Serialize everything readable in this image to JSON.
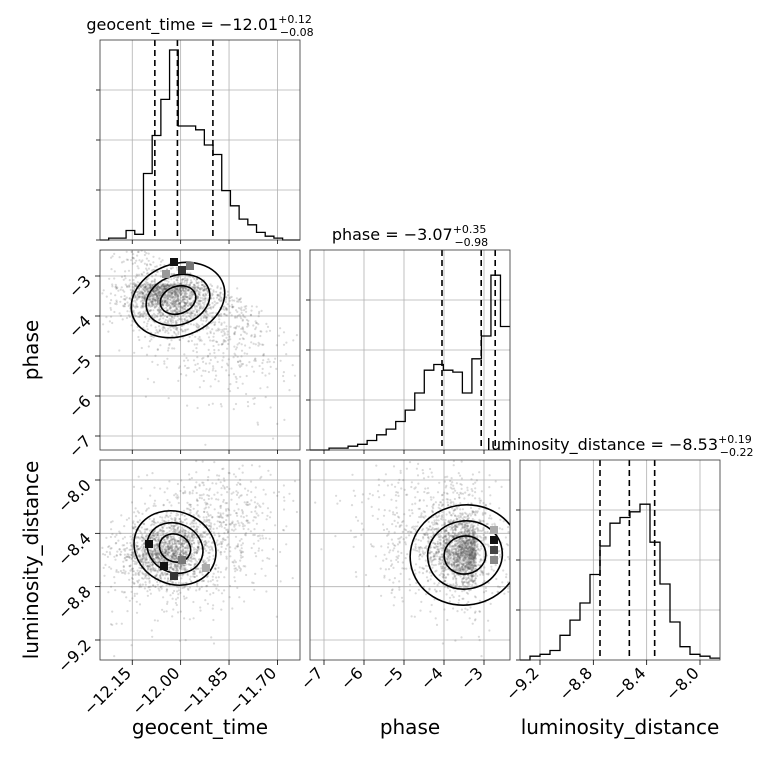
{
  "chart_data": {
    "type": "corner",
    "params": [
      {
        "name": "geocent_time",
        "label": "geocent_time",
        "median": -12.01,
        "plus": "+0.12",
        "minus": "−0.08",
        "title_main": "geocent_time = −12.01",
        "range": [
          -12.25,
          -11.63
        ],
        "ticks": [
          -12.15,
          -12.0,
          -11.85,
          -11.7
        ],
        "tick_labels": [
          "−12.15",
          "−12.00",
          "−11.85",
          "−11.70"
        ],
        "quantiles": [
          -12.08,
          -12.01,
          -11.9
        ],
        "hist": [
          0,
          0.01,
          0.01,
          0.05,
          0.03,
          0.35,
          0.55,
          0.74,
          1.0,
          0.6,
          0.6,
          0.58,
          0.5,
          0.45,
          0.26,
          0.18,
          0.11,
          0.08,
          0.04,
          0.02,
          0.01,
          0,
          0
        ]
      },
      {
        "name": "phase",
        "label": "phase",
        "median": -3.07,
        "plus": "+0.35",
        "minus": "−0.98",
        "title_main": "phase = −3.07",
        "range": [
          -7.35,
          -2.35
        ],
        "ticks": [
          -7,
          -6,
          -5,
          -4,
          -3
        ],
        "tick_labels": [
          "−7",
          "−6",
          "−5",
          "−4",
          "−3"
        ],
        "quantiles": [
          -4.05,
          -3.07,
          -2.72
        ],
        "hist": [
          0,
          0,
          0.01,
          0.01,
          0.02,
          0.03,
          0.05,
          0.08,
          0.11,
          0.15,
          0.21,
          0.3,
          0.42,
          0.45,
          0.42,
          0.41,
          0.3,
          0.48,
          0.6,
          0.92,
          0.65
        ]
      },
      {
        "name": "luminosity_distance",
        "label": "luminosity_distance",
        "median": -8.53,
        "plus": "+0.19",
        "minus": "−0.22",
        "title_main": "luminosity_distance = −8.53",
        "range": [
          -9.35,
          -7.85
        ],
        "ticks": [
          -9.2,
          -8.8,
          -8.4,
          -8.0
        ],
        "tick_labels": [
          "−9.2",
          "−8.8",
          "−8.4",
          "−8.0"
        ],
        "quantiles": [
          -8.75,
          -8.53,
          -8.34
        ],
        "hist": [
          0,
          0.02,
          0.03,
          0.05,
          0.13,
          0.21,
          0.3,
          0.45,
          0.6,
          0.72,
          0.75,
          0.78,
          0.82,
          0.62,
          0.4,
          0.2,
          0.07,
          0.03,
          0.02,
          0.01
        ]
      }
    ],
    "axis_labels": {
      "x": [
        "geocent_time",
        "phase",
        "luminosity_distance"
      ],
      "y": [
        "phase",
        "luminosity_distance"
      ]
    },
    "scatter_seed_count": 2200
  }
}
